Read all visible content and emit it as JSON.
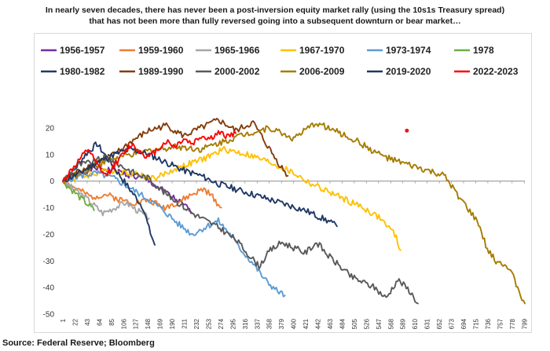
{
  "headline": {
    "line1": "In nearly seven decades, there has never been a post-inversion equity market rally (using the 10s1s Treasury spread)",
    "line2": "that has not been more than fully reversed going into a subsequent downturn or bear market…"
  },
  "source": "Source: Federal Reserve; Bloomberg",
  "chart_data": {
    "type": "line",
    "title": "In nearly seven decades, there has never been a post-inversion equity market rally (using the 10s1s Treasury spread) that has not been more than fully reversed going into a subsequent downturn or bear market…",
    "xlabel": "",
    "ylabel": "",
    "xlim": [
      1,
      800
    ],
    "ylim": [
      -50,
      25
    ],
    "yticks": [
      20,
      10,
      0,
      -10,
      -20,
      -30,
      -40,
      -50
    ],
    "xticks": [
      1,
      22,
      43,
      64,
      85,
      106,
      127,
      148,
      169,
      190,
      211,
      232,
      253,
      274,
      295,
      316,
      337,
      358,
      379,
      400,
      421,
      442,
      463,
      484,
      505,
      526,
      547,
      568,
      589,
      610,
      631,
      652,
      673,
      694,
      715,
      736,
      757,
      778,
      799
    ],
    "legend_position": "top",
    "series": [
      {
        "name": "1956-1957",
        "color": "#7030A0",
        "points": [
          [
            1,
            0
          ],
          [
            30,
            3
          ],
          [
            60,
            5
          ],
          [
            90,
            4
          ],
          [
            120,
            2
          ],
          [
            150,
            0
          ],
          [
            170,
            -3
          ],
          [
            190,
            -6
          ],
          [
            210,
            -9
          ],
          [
            225,
            -12
          ]
        ]
      },
      {
        "name": "1959-1960",
        "color": "#ED7D31",
        "points": [
          [
            1,
            0
          ],
          [
            25,
            -3
          ],
          [
            50,
            -6
          ],
          [
            75,
            -5
          ],
          [
            100,
            -7
          ],
          [
            125,
            -8
          ],
          [
            150,
            -7
          ],
          [
            175,
            -10
          ],
          [
            200,
            -8
          ],
          [
            225,
            -5
          ],
          [
            245,
            -3
          ],
          [
            260,
            -6
          ],
          [
            275,
            -10
          ]
        ]
      },
      {
        "name": "1965-1966",
        "color": "#A6A6A6",
        "points": [
          [
            1,
            0
          ],
          [
            20,
            -3
          ],
          [
            40,
            -6
          ],
          [
            55,
            -9
          ],
          [
            70,
            -12
          ],
          [
            90,
            -10
          ],
          [
            110,
            -8
          ],
          [
            130,
            -11
          ],
          [
            150,
            -14
          ]
        ]
      },
      {
        "name": "1967-1970",
        "color": "#FFC000",
        "points": [
          [
            1,
            0
          ],
          [
            40,
            2
          ],
          [
            80,
            4
          ],
          [
            120,
            3
          ],
          [
            160,
            1
          ],
          [
            200,
            5
          ],
          [
            240,
            8
          ],
          [
            280,
            12
          ],
          [
            320,
            10
          ],
          [
            360,
            7
          ],
          [
            400,
            3
          ],
          [
            430,
            -1
          ],
          [
            460,
            -4
          ],
          [
            490,
            -7
          ],
          [
            520,
            -10
          ],
          [
            550,
            -14
          ],
          [
            575,
            -20
          ],
          [
            585,
            -26
          ]
        ]
      },
      {
        "name": "1973-1974",
        "color": "#5B9BD5",
        "points": [
          [
            1,
            0
          ],
          [
            30,
            2
          ],
          [
            60,
            3
          ],
          [
            90,
            1
          ],
          [
            120,
            -3
          ],
          [
            150,
            -7
          ],
          [
            175,
            -11
          ],
          [
            200,
            -16
          ],
          [
            225,
            -20
          ],
          [
            250,
            -17
          ],
          [
            270,
            -15
          ],
          [
            290,
            -20
          ],
          [
            310,
            -26
          ],
          [
            330,
            -31
          ],
          [
            350,
            -37
          ],
          [
            370,
            -41
          ],
          [
            385,
            -43
          ]
        ]
      },
      {
        "name": "1978",
        "color": "#70AD47",
        "points": [
          [
            1,
            0
          ],
          [
            10,
            -2
          ],
          [
            20,
            -4
          ],
          [
            30,
            -6
          ],
          [
            40,
            -8
          ],
          [
            50,
            -10
          ],
          [
            55,
            -11
          ]
        ]
      },
      {
        "name": "1980-1982",
        "color": "#203864",
        "points": [
          [
            1,
            0
          ],
          [
            20,
            4
          ],
          [
            40,
            10
          ],
          [
            60,
            14
          ],
          [
            80,
            8
          ],
          [
            100,
            2
          ],
          [
            120,
            -4
          ],
          [
            140,
            -10
          ],
          [
            150,
            -18
          ],
          [
            160,
            -24
          ]
        ]
      },
      {
        "name": "1989-1990",
        "color": "#843C0C",
        "points": [
          [
            1,
            0
          ],
          [
            30,
            4
          ],
          [
            60,
            7
          ],
          [
            90,
            10
          ],
          [
            120,
            15
          ],
          [
            150,
            19
          ],
          [
            180,
            21
          ],
          [
            210,
            17
          ],
          [
            240,
            20
          ],
          [
            270,
            23
          ],
          [
            300,
            19
          ],
          [
            330,
            22
          ],
          [
            350,
            15
          ],
          [
            370,
            8
          ],
          [
            380,
            5
          ],
          [
            390,
            2
          ]
        ]
      },
      {
        "name": "2000-2002",
        "color": "#595959",
        "points": [
          [
            1,
            0
          ],
          [
            25,
            6
          ],
          [
            50,
            7
          ],
          [
            75,
            9
          ],
          [
            100,
            6
          ],
          [
            125,
            3
          ],
          [
            150,
            1
          ],
          [
            175,
            -4
          ],
          [
            200,
            -8
          ],
          [
            225,
            -12
          ],
          [
            250,
            -15
          ],
          [
            275,
            -18
          ],
          [
            300,
            -22
          ],
          [
            320,
            -27
          ],
          [
            340,
            -32
          ],
          [
            360,
            -26
          ],
          [
            380,
            -23
          ],
          [
            400,
            -25
          ],
          [
            420,
            -27
          ],
          [
            440,
            -23
          ],
          [
            460,
            -28
          ],
          [
            480,
            -32
          ],
          [
            500,
            -36
          ],
          [
            520,
            -38
          ],
          [
            540,
            -40
          ],
          [
            560,
            -44
          ],
          [
            580,
            -37
          ],
          [
            600,
            -41
          ],
          [
            615,
            -46
          ]
        ]
      },
      {
        "name": "2006-2009",
        "color": "#A57C00",
        "points": [
          [
            1,
            0
          ],
          [
            40,
            4
          ],
          [
            80,
            8
          ],
          [
            120,
            10
          ],
          [
            160,
            12
          ],
          [
            200,
            13
          ],
          [
            240,
            12
          ],
          [
            280,
            15
          ],
          [
            320,
            18
          ],
          [
            360,
            20
          ],
          [
            400,
            16
          ],
          [
            440,
            22
          ],
          [
            480,
            18
          ],
          [
            510,
            15
          ],
          [
            540,
            11
          ],
          [
            570,
            8
          ],
          [
            600,
            6
          ],
          [
            630,
            4
          ],
          [
            660,
            2
          ],
          [
            680,
            -4
          ],
          [
            700,
            -10
          ],
          [
            720,
            -16
          ],
          [
            735,
            -26
          ],
          [
            750,
            -30
          ],
          [
            765,
            -31
          ],
          [
            780,
            -36
          ],
          [
            795,
            -44
          ],
          [
            800,
            -46
          ]
        ]
      },
      {
        "name": "2019-2020",
        "color": "#1F3864",
        "points": [
          [
            1,
            0
          ],
          [
            30,
            3
          ],
          [
            60,
            7
          ],
          [
            90,
            10
          ],
          [
            120,
            12
          ],
          [
            150,
            10
          ],
          [
            180,
            7
          ],
          [
            210,
            4
          ],
          [
            240,
            2
          ],
          [
            270,
            -1
          ],
          [
            300,
            -3
          ],
          [
            330,
            -5
          ],
          [
            360,
            -7
          ],
          [
            390,
            -9
          ],
          [
            420,
            -11
          ],
          [
            440,
            -13
          ],
          [
            460,
            -15
          ],
          [
            475,
            -17
          ]
        ]
      },
      {
        "name": "2022-2023",
        "color": "#FF0000",
        "points": [
          [
            1,
            0
          ],
          [
            15,
            4
          ],
          [
            30,
            8
          ],
          [
            45,
            12
          ],
          [
            60,
            6
          ],
          [
            75,
            2
          ],
          [
            90,
            6
          ],
          [
            105,
            10
          ],
          [
            120,
            14
          ],
          [
            135,
            11
          ],
          [
            150,
            9
          ],
          [
            165,
            12
          ],
          [
            180,
            15
          ],
          [
            195,
            13
          ],
          [
            210,
            16
          ],
          [
            225,
            14
          ],
          [
            240,
            17
          ],
          [
            255,
            16
          ],
          [
            270,
            18
          ],
          [
            285,
            17
          ],
          [
            300,
            18
          ]
        ]
      }
    ],
    "annotations": [
      {
        "type": "marker",
        "x": 596,
        "y": 19,
        "color": "#E31A1C"
      }
    ]
  }
}
